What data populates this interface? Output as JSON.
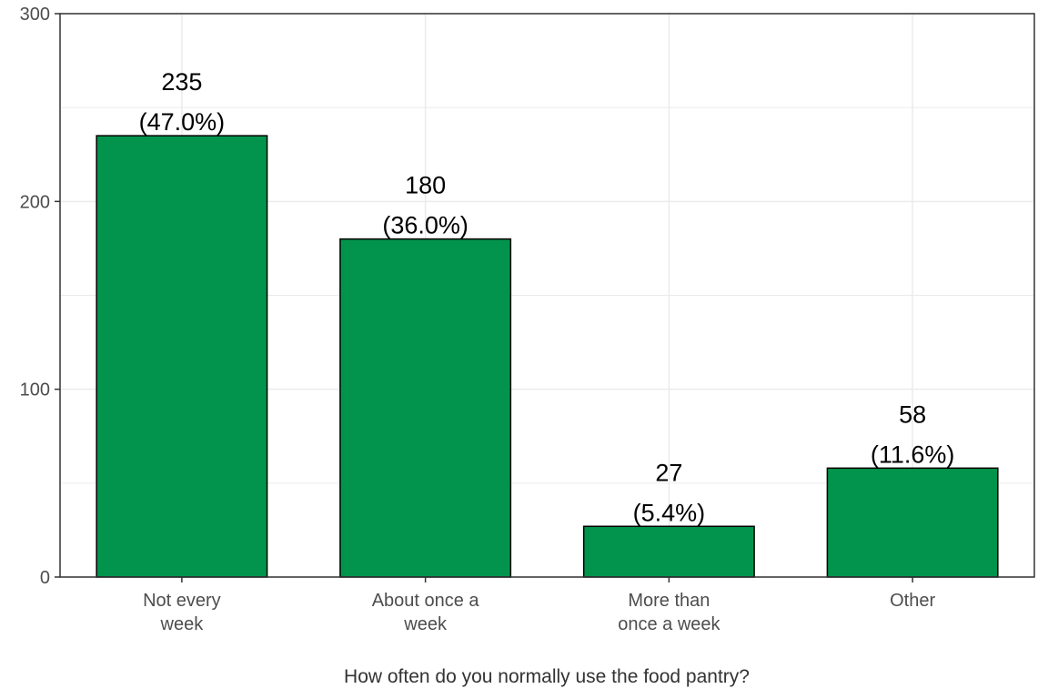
{
  "chart_data": {
    "type": "bar",
    "categories": [
      [
        "Not every",
        "week"
      ],
      [
        "About once a",
        "week"
      ],
      [
        "More than",
        "once a week"
      ],
      [
        "Other"
      ]
    ],
    "values": [
      235,
      180,
      27,
      58
    ],
    "value_labels": [
      "235",
      "180",
      "27",
      "58"
    ],
    "percent_labels": [
      "(47.0%)",
      "(36.0%)",
      "(5.4%)",
      "(11.6%)"
    ],
    "xlabel": "How often do you normally use the food pantry?",
    "ylabel": "",
    "ylim": [
      0,
      300
    ],
    "yticks": [
      0,
      100,
      200,
      300
    ],
    "grid": true,
    "colors": {
      "bar": "#02944c",
      "bar_border": "#000000",
      "grid": "#ebebeb",
      "panel_border": "#333333"
    }
  }
}
